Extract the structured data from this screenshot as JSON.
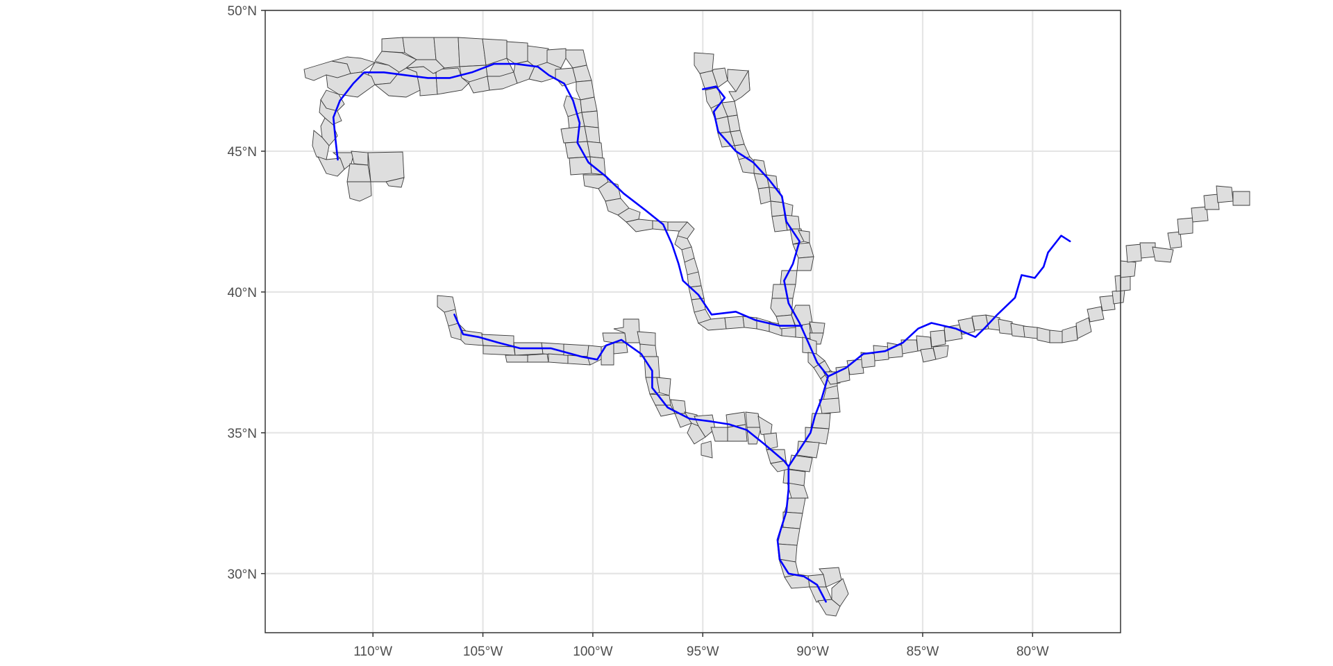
{
  "map": {
    "x_axis": {
      "ticks": [
        {
          "value": -110,
          "label": "110°W"
        },
        {
          "value": -105,
          "label": "105°W"
        },
        {
          "value": -100,
          "label": "100°W"
        },
        {
          "value": -95,
          "label": "95°W"
        },
        {
          "value": -90,
          "label": "90°W"
        },
        {
          "value": -85,
          "label": "85°W"
        },
        {
          "value": -80,
          "label": "80°W"
        }
      ],
      "range": [
        -114.9,
        -76.0
      ]
    },
    "y_axis": {
      "ticks": [
        {
          "value": 30,
          "label": "30°N"
        },
        {
          "value": 35,
          "label": "35°N"
        },
        {
          "value": 40,
          "label": "40°N"
        },
        {
          "value": 45,
          "label": "45°N"
        },
        {
          "value": 50,
          "label": "50°N"
        }
      ],
      "range": [
        27.9,
        50.0
      ]
    },
    "colors": {
      "river": "#0000ff",
      "county_fill": "#dedede",
      "county_stroke": "#3a3a3a",
      "grid": "#e5e5e5",
      "panel_border": "#333333"
    },
    "rivers": [
      {
        "id": "missouri",
        "points": [
          [
            -109.5,
            47.8
          ],
          [
            -108.5,
            47.7
          ],
          [
            -107.5,
            47.6
          ],
          [
            -106.5,
            47.6
          ],
          [
            -105.5,
            47.8
          ],
          [
            -104.5,
            48.1
          ],
          [
            -103.5,
            48.1
          ],
          [
            -102.5,
            48.0
          ],
          [
            -102.0,
            47.7
          ],
          [
            -101.3,
            47.4
          ],
          [
            -100.9,
            46.8
          ],
          [
            -100.6,
            46.0
          ],
          [
            -100.7,
            45.3
          ],
          [
            -100.2,
            44.6
          ],
          [
            -99.4,
            44.1
          ],
          [
            -98.6,
            43.5
          ],
          [
            -97.6,
            42.9
          ],
          [
            -96.8,
            42.4
          ],
          [
            -96.4,
            41.7
          ],
          [
            -96.1,
            41.0
          ],
          [
            -95.9,
            40.4
          ],
          [
            -95.2,
            39.9
          ],
          [
            -94.6,
            39.2
          ],
          [
            -93.5,
            39.3
          ],
          [
            -92.6,
            39.0
          ],
          [
            -91.5,
            38.8
          ],
          [
            -90.5,
            38.8
          ]
        ]
      },
      {
        "id": "missouri-headwaters",
        "points": [
          [
            -111.6,
            44.7
          ],
          [
            -111.7,
            45.4
          ],
          [
            -111.8,
            46.2
          ],
          [
            -111.5,
            46.8
          ],
          [
            -110.9,
            47.4
          ],
          [
            -110.4,
            47.8
          ],
          [
            -109.5,
            47.8
          ]
        ]
      },
      {
        "id": "mississippi",
        "points": [
          [
            -95.0,
            47.2
          ],
          [
            -94.4,
            47.3
          ],
          [
            -94.0,
            46.9
          ],
          [
            -94.5,
            46.4
          ],
          [
            -94.3,
            45.7
          ],
          [
            -93.5,
            45.0
          ],
          [
            -92.7,
            44.6
          ],
          [
            -92.0,
            44.0
          ],
          [
            -91.4,
            43.4
          ],
          [
            -91.2,
            42.5
          ],
          [
            -90.6,
            41.8
          ],
          [
            -90.9,
            41.0
          ],
          [
            -91.3,
            40.4
          ],
          [
            -91.1,
            39.6
          ],
          [
            -90.6,
            38.9
          ],
          [
            -90.2,
            38.2
          ],
          [
            -89.8,
            37.5
          ],
          [
            -89.3,
            37.0
          ],
          [
            -89.6,
            36.2
          ],
          [
            -89.9,
            35.6
          ],
          [
            -90.1,
            35.0
          ],
          [
            -90.6,
            34.4
          ],
          [
            -91.1,
            33.8
          ],
          [
            -91.1,
            33.0
          ],
          [
            -91.2,
            32.2
          ],
          [
            -91.6,
            31.2
          ],
          [
            -91.5,
            30.5
          ],
          [
            -91.1,
            30.0
          ],
          [
            -90.4,
            29.9
          ],
          [
            -89.8,
            29.6
          ],
          [
            -89.4,
            29.0
          ]
        ]
      },
      {
        "id": "ohio",
        "points": [
          [
            -89.3,
            37.0
          ],
          [
            -88.5,
            37.3
          ],
          [
            -87.7,
            37.8
          ],
          [
            -86.7,
            37.9
          ],
          [
            -85.9,
            38.2
          ],
          [
            -85.2,
            38.7
          ],
          [
            -84.6,
            38.9
          ],
          [
            -83.5,
            38.7
          ],
          [
            -82.6,
            38.4
          ],
          [
            -82.2,
            38.7
          ],
          [
            -81.6,
            39.2
          ],
          [
            -80.8,
            39.8
          ],
          [
            -80.5,
            40.6
          ],
          [
            -79.9,
            40.5
          ],
          [
            -79.5,
            40.9
          ],
          [
            -79.3,
            41.4
          ],
          [
            -78.7,
            42.0
          ],
          [
            -78.3,
            41.8
          ]
        ]
      },
      {
        "id": "arkansas",
        "points": [
          [
            -106.3,
            39.2
          ],
          [
            -105.9,
            38.5
          ],
          [
            -105.2,
            38.4
          ],
          [
            -104.3,
            38.2
          ],
          [
            -103.3,
            38.0
          ],
          [
            -101.9,
            38.0
          ],
          [
            -100.5,
            37.7
          ],
          [
            -99.8,
            37.6
          ],
          [
            -99.4,
            38.1
          ],
          [
            -98.7,
            38.3
          ],
          [
            -97.8,
            37.8
          ],
          [
            -97.3,
            37.2
          ],
          [
            -97.3,
            36.6
          ],
          [
            -96.6,
            35.9
          ],
          [
            -95.6,
            35.5
          ],
          [
            -94.6,
            35.4
          ],
          [
            -93.8,
            35.3
          ],
          [
            -93.0,
            35.1
          ],
          [
            -92.2,
            34.6
          ],
          [
            -91.3,
            34.0
          ],
          [
            -91.1,
            33.8
          ]
        ]
      }
    ]
  }
}
